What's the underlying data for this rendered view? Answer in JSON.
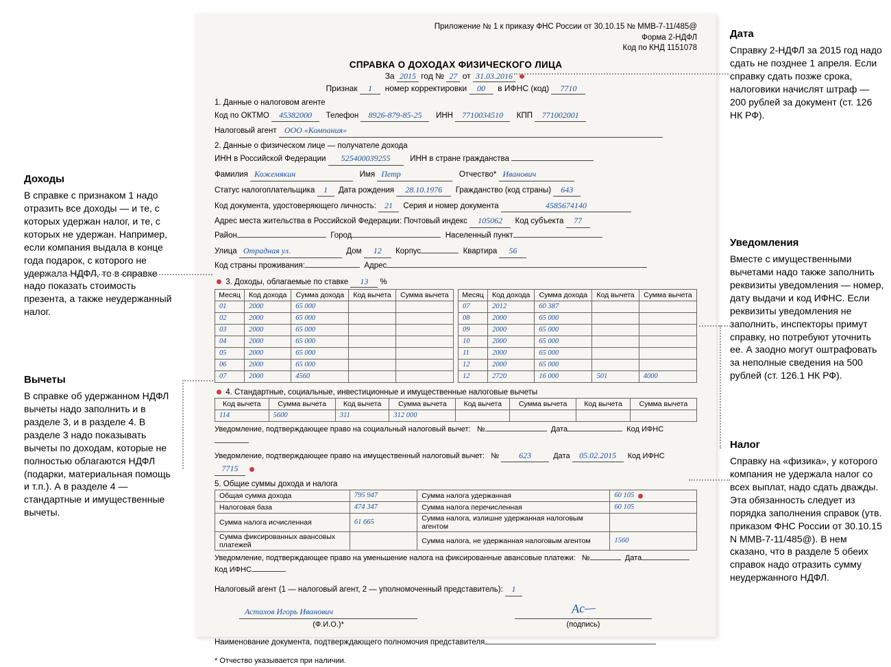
{
  "colors": {
    "paper": "#f6f5f1",
    "hand": "#1e4fa3",
    "bullet": "#c93a49",
    "border": "#666666",
    "text": "#000000",
    "dash": "#999999"
  },
  "header": {
    "l1": "Приложение № 1 к приказу ФНС России от 30.10.15 № ММВ-7-11/485@",
    "l2": "Форма 2-НДФЛ",
    "l3": "Код по КНД 1151078"
  },
  "title": "СПРАВКА О ДОХОДАХ ФИЗИЧЕСКОГО ЛИЦА",
  "subtitle": {
    "za": "За",
    "year": "2015",
    "god_no": "год №",
    "num": "27",
    "ot": "от",
    "date": "31.03.2016"
  },
  "row1": {
    "priznak_l": "Признак",
    "priznak_v": "1",
    "korr_l": "номер корректировки",
    "korr_v": "00",
    "ifns_l": "в ИФНС (код)",
    "ifns_v": "7710"
  },
  "s1": {
    "title": "1. Данные о налоговом агенте",
    "oktmo_l": "Код по ОКТМО",
    "oktmo_v": "45382000",
    "tel_l": "Телефон",
    "tel_v": "8926-879-85-25",
    "inn_l": "ИНН",
    "inn_v": "7710034510",
    "kpp_l": "КПП",
    "kpp_v": "771002001",
    "agent_l": "Налоговый агент",
    "agent_v": "ООО «Компания»"
  },
  "s2": {
    "title": "2. Данные о физическом лице — получателе дохода",
    "innrf_l": "ИНН в Российской Федерации",
    "innrf_v": "525400039255",
    "innc_l": "ИНН в стране гражданства",
    "innc_v": "",
    "fam_l": "Фамилия",
    "fam_v": "Кожемякин",
    "imya_l": "Имя",
    "imya_v": "Петр",
    "otch_l": "Отчество*",
    "otch_v": "Иванович",
    "status_l": "Статус налогоплательщика",
    "status_v": "1",
    "dob_l": "Дата рождения",
    "dob_v": "28.10.1976",
    "citz_l": "Гражданство (код страны)",
    "citz_v": "643",
    "doccode_l": "Код документа, удостоверяющего личность:",
    "doccode_v": "21",
    "docser_l": "Серия и номер документа",
    "docser_v": "4585674140",
    "addr_l": "Адрес места жительства в Российской Федерации: Почтовый индекс",
    "addr_idx": "105062",
    "subj_l": "Код субъекта",
    "subj_v": "77",
    "rayon_l": "Район",
    "gorod_l": "Город",
    "nas_l": "Населенный пункт",
    "ul_l": "Улица",
    "ul_v": "Отрадная ул.",
    "dom_l": "Дом",
    "dom_v": "12",
    "korp_l": "Корпус",
    "kv_l": "Квартира",
    "kv_v": "56",
    "country_l": "Код страны проживания:",
    "addr2_l": "Адрес"
  },
  "s3": {
    "title_pre": "3. Доходы, облагаемые по ставке",
    "rate": "13",
    "pct": "%",
    "cols": [
      "Месяц",
      "Код дохода",
      "Сумма дохода",
      "Код вычета",
      "Сумма вычета"
    ],
    "left": [
      [
        "01",
        "2000",
        "65 000",
        "",
        ""
      ],
      [
        "02",
        "2000",
        "65 000",
        "",
        ""
      ],
      [
        "03",
        "2000",
        "65 000",
        "",
        ""
      ],
      [
        "04",
        "2000",
        "65 000",
        "",
        ""
      ],
      [
        "05",
        "2000",
        "65 000",
        "",
        ""
      ],
      [
        "06",
        "2000",
        "65 000",
        "",
        ""
      ],
      [
        "07",
        "2000",
        "4560",
        "",
        ""
      ]
    ],
    "right": [
      [
        "07",
        "2012",
        "60 387",
        "",
        ""
      ],
      [
        "08",
        "2000",
        "65 000",
        "",
        ""
      ],
      [
        "09",
        "2000",
        "65 000",
        "",
        ""
      ],
      [
        "10",
        "2000",
        "65 000",
        "",
        ""
      ],
      [
        "11",
        "2000",
        "65 000",
        "",
        ""
      ],
      [
        "12",
        "2000",
        "65 000",
        "",
        ""
      ],
      [
        "12",
        "2720",
        "16 000",
        "501",
        "4000"
      ]
    ]
  },
  "s4": {
    "title": "4. Стандартные, социальные, инвестиционные и имущественные налоговые вычеты",
    "cols": [
      "Код вычета",
      "Сумма вычета",
      "Код вычета",
      "Сумма вычета",
      "Код вычета",
      "Сумма вычета",
      "Код вычета",
      "Сумма вычета"
    ],
    "row": [
      "114",
      "5600",
      "311",
      "312 000",
      "",
      "",
      "",
      ""
    ],
    "uved_soc": "Уведомление, подтверждающее право на социальный налоговый вычет:",
    "uved_imu": "Уведомление, подтверждающее право на имущественный налоговый вычет:",
    "no": "№",
    "date_l": "Дата",
    "ifns_l": "Код ИФНС",
    "imu_no": "623",
    "imu_date": "05.02.2015",
    "imu_ifns": "7715"
  },
  "s5": {
    "title": "5. Общие суммы дохода и налога",
    "cells": {
      "a": "Общая сумма дохода",
      "av": "795 947",
      "b": "Сумма налога удержанная",
      "bv": "60 105",
      "c": "Налоговая база",
      "cv": "474 347",
      "d": "Сумма налога перечисленная",
      "dv": "60 105",
      "e": "Сумма налога исчисленная",
      "ev": "61 665",
      "f": "Сумма налога, излишне удержанная налоговым агентом",
      "fv": "",
      "g": "Сумма фиксированных авансовых платежей",
      "gv": "",
      "h": "Сумма налога, не удержанная налоговым агентом",
      "hv": "1560"
    },
    "uved": "Уведомление, подтверждающее право на уменьшение налога на фиксированные авансовые платежи:",
    "no": "№",
    "date_l": "Дата",
    "ifns_l": "Код ИФНС"
  },
  "footer": {
    "agent_l": "Налоговый агент (1 — налоговый агент, 2 — уполномоченный представитель):",
    "agent_v": "1",
    "fio_v": "Астахов Игорь Иванович",
    "fio_hint": "(Ф.И.О.)*",
    "sig_hint": "(подпись)",
    "docname": "Наименование документа, подтверждающего полномочия представителя",
    "note": "* Отчество указывается при наличии."
  },
  "ann": {
    "date": {
      "h": "Дата",
      "t": "Справку 2-НДФЛ за 2015 год надо сдать не позднее 1 апреля. Если справку сдать позже срока, налоговики начислят штраф — 200 рублей за документ (ст. 126 НК РФ)."
    },
    "income": {
      "h": "Доходы",
      "t": "В справке с признаком 1 надо отразить все доходы — и те, с которых удержан налог, и те, с которых не удержан. Например, если компания выдала в конце года подарок, с которого не удержала НДФЛ, то в справке надо показать стоимость презента, а также неудержанный налог."
    },
    "deduct": {
      "h": "Вычеты",
      "t": "В справке об удержанном НДФЛ вычеты надо заполнить и в разделе 3, и в разделе 4. В разделе 3 надо показывать вычеты по доходам, которые не полностью облагаются НДФЛ (подарки, материальная помощь и т.п.). А в разделе 4 — стандартные и имущественные вычеты."
    },
    "notif": {
      "h": "Уведомления",
      "t": "Вместе с имущественными вычетами надо также заполнить реквизиты уведомления — номер, дату выдачи и код ИФНС. Если реквизиты уведомления не заполнить, инспекторы примут справку, но потребуют уточнить ее. А заодно могут оштрафовать за неполные сведения на 500 рублей (ст. 126.1 НК РФ)."
    },
    "tax": {
      "h": "Налог",
      "t": "Справку на «физика», у которого компания не удержала налог со всех выплат, надо сдать дважды. Эта обязанность следует из порядка заполнения справок (утв. приказом ФНС России от 30.10.15 N ММВ-7-11/485@). В нем сказано, что в разделе 5 обеих справок надо отразить сумму неудержанного НДФЛ."
    }
  }
}
